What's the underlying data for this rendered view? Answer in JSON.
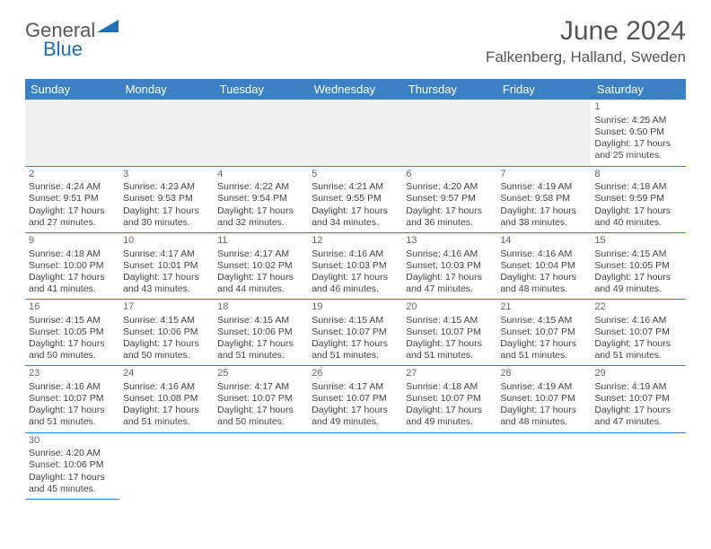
{
  "logo": {
    "text1": "General",
    "text2": "Blue",
    "tri_color": "#1f6fb2"
  },
  "title": "June 2024",
  "location": "Falkenberg, Halland, Sweden",
  "colors": {
    "header_bg": "#3b7fc4",
    "header_text": "#ffffff",
    "grid_line": "#3b7fc4",
    "daynum": "#666666",
    "body_text": "#444444"
  },
  "day_headers": [
    "Sunday",
    "Monday",
    "Tuesday",
    "Wednesday",
    "Thursday",
    "Friday",
    "Saturday"
  ],
  "weeks": [
    [
      null,
      null,
      null,
      null,
      null,
      null,
      {
        "n": "1",
        "sr": "4:25 AM",
        "ss": "9:50 PM",
        "dl": "17 hours and 25 minutes."
      }
    ],
    [
      {
        "n": "2",
        "sr": "4:24 AM",
        "ss": "9:51 PM",
        "dl": "17 hours and 27 minutes."
      },
      {
        "n": "3",
        "sr": "4:23 AM",
        "ss": "9:53 PM",
        "dl": "17 hours and 30 minutes."
      },
      {
        "n": "4",
        "sr": "4:22 AM",
        "ss": "9:54 PM",
        "dl": "17 hours and 32 minutes."
      },
      {
        "n": "5",
        "sr": "4:21 AM",
        "ss": "9:55 PM",
        "dl": "17 hours and 34 minutes."
      },
      {
        "n": "6",
        "sr": "4:20 AM",
        "ss": "9:57 PM",
        "dl": "17 hours and 36 minutes."
      },
      {
        "n": "7",
        "sr": "4:19 AM",
        "ss": "9:58 PM",
        "dl": "17 hours and 38 minutes."
      },
      {
        "n": "8",
        "sr": "4:18 AM",
        "ss": "9:59 PM",
        "dl": "17 hours and 40 minutes."
      }
    ],
    [
      {
        "n": "9",
        "sr": "4:18 AM",
        "ss": "10:00 PM",
        "dl": "17 hours and 41 minutes."
      },
      {
        "n": "10",
        "sr": "4:17 AM",
        "ss": "10:01 PM",
        "dl": "17 hours and 43 minutes."
      },
      {
        "n": "11",
        "sr": "4:17 AM",
        "ss": "10:02 PM",
        "dl": "17 hours and 44 minutes."
      },
      {
        "n": "12",
        "sr": "4:16 AM",
        "ss": "10:03 PM",
        "dl": "17 hours and 46 minutes."
      },
      {
        "n": "13",
        "sr": "4:16 AM",
        "ss": "10:03 PM",
        "dl": "17 hours and 47 minutes."
      },
      {
        "n": "14",
        "sr": "4:16 AM",
        "ss": "10:04 PM",
        "dl": "17 hours and 48 minutes."
      },
      {
        "n": "15",
        "sr": "4:15 AM",
        "ss": "10:05 PM",
        "dl": "17 hours and 49 minutes."
      }
    ],
    [
      {
        "n": "16",
        "sr": "4:15 AM",
        "ss": "10:05 PM",
        "dl": "17 hours and 50 minutes."
      },
      {
        "n": "17",
        "sr": "4:15 AM",
        "ss": "10:06 PM",
        "dl": "17 hours and 50 minutes."
      },
      {
        "n": "18",
        "sr": "4:15 AM",
        "ss": "10:06 PM",
        "dl": "17 hours and 51 minutes."
      },
      {
        "n": "19",
        "sr": "4:15 AM",
        "ss": "10:07 PM",
        "dl": "17 hours and 51 minutes."
      },
      {
        "n": "20",
        "sr": "4:15 AM",
        "ss": "10:07 PM",
        "dl": "17 hours and 51 minutes."
      },
      {
        "n": "21",
        "sr": "4:15 AM",
        "ss": "10:07 PM",
        "dl": "17 hours and 51 minutes."
      },
      {
        "n": "22",
        "sr": "4:16 AM",
        "ss": "10:07 PM",
        "dl": "17 hours and 51 minutes."
      }
    ],
    [
      {
        "n": "23",
        "sr": "4:16 AM",
        "ss": "10:07 PM",
        "dl": "17 hours and 51 minutes."
      },
      {
        "n": "24",
        "sr": "4:16 AM",
        "ss": "10:08 PM",
        "dl": "17 hours and 51 minutes."
      },
      {
        "n": "25",
        "sr": "4:17 AM",
        "ss": "10:07 PM",
        "dl": "17 hours and 50 minutes."
      },
      {
        "n": "26",
        "sr": "4:17 AM",
        "ss": "10:07 PM",
        "dl": "17 hours and 49 minutes."
      },
      {
        "n": "27",
        "sr": "4:18 AM",
        "ss": "10:07 PM",
        "dl": "17 hours and 49 minutes."
      },
      {
        "n": "28",
        "sr": "4:19 AM",
        "ss": "10:07 PM",
        "dl": "17 hours and 48 minutes."
      },
      {
        "n": "29",
        "sr": "4:19 AM",
        "ss": "10:07 PM",
        "dl": "17 hours and 47 minutes."
      }
    ],
    [
      {
        "n": "30",
        "sr": "4:20 AM",
        "ss": "10:06 PM",
        "dl": "17 hours and 45 minutes."
      },
      null,
      null,
      null,
      null,
      null,
      null
    ]
  ],
  "labels": {
    "sunrise": "Sunrise: ",
    "sunset": "Sunset: ",
    "daylight": "Daylight: "
  }
}
